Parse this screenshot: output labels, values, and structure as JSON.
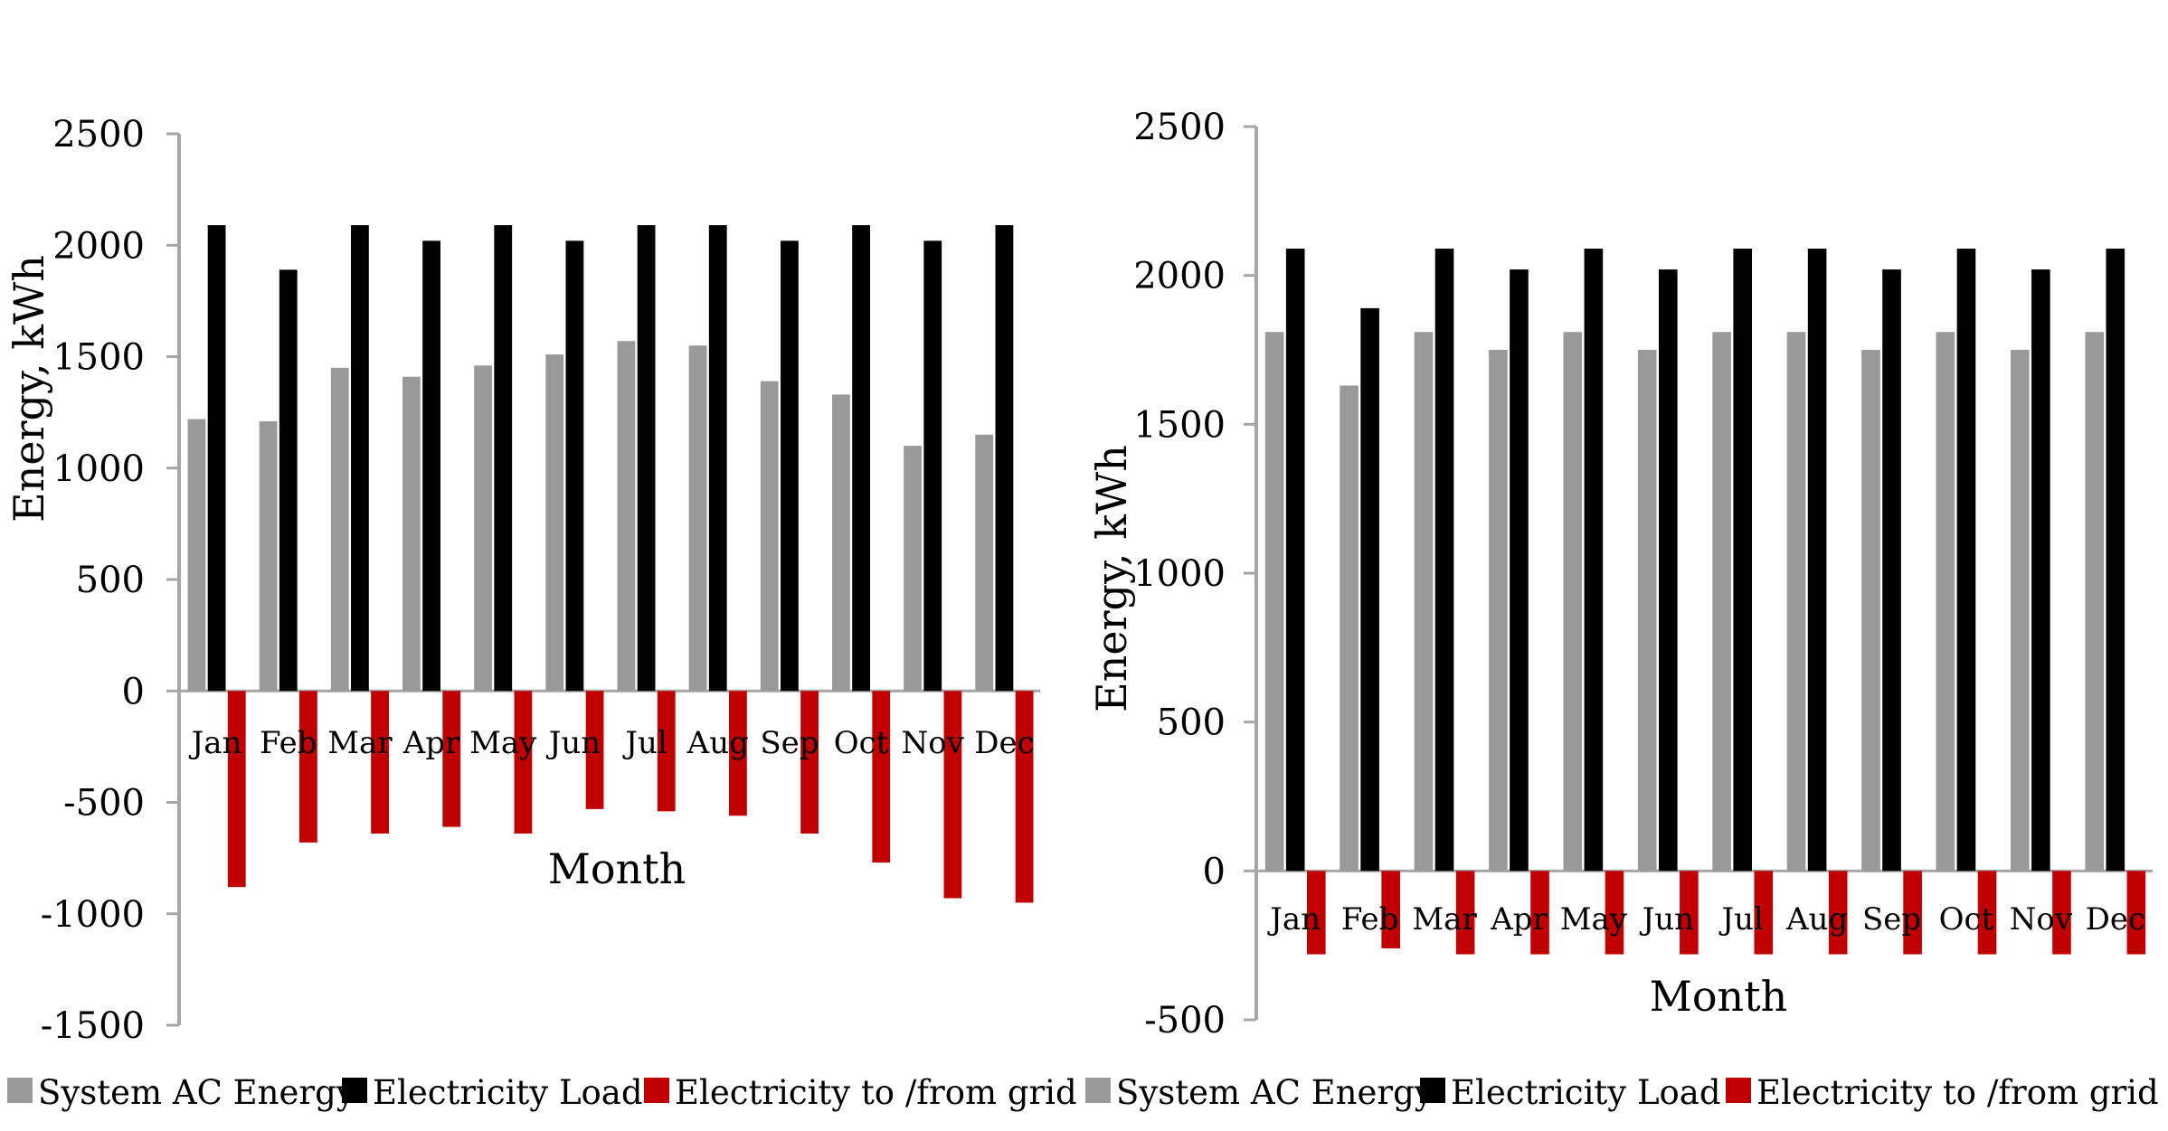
{
  "chart_data": [
    {
      "type": "bar",
      "categories": [
        "Jan",
        "Feb",
        "Mar",
        "Apr",
        "May",
        "Jun",
        "Jul",
        "Aug",
        "Sep",
        "Oct",
        "Nov",
        "Dec"
      ],
      "series": [
        {
          "name": "System AC Energy",
          "values": [
            1220,
            1210,
            1450,
            1410,
            1460,
            1510,
            1570,
            1550,
            1390,
            1330,
            1100,
            1150
          ]
        },
        {
          "name": "Electricity Load",
          "values": [
            2090,
            1890,
            2090,
            2020,
            2090,
            2020,
            2090,
            2090,
            2020,
            2090,
            2020,
            2090
          ]
        },
        {
          "name": "Electricity to /from grid",
          "values": [
            -880,
            -680,
            -640,
            -610,
            -640,
            -530,
            -540,
            -560,
            -640,
            -770,
            -930,
            -950
          ]
        }
      ],
      "xlabel": "Month",
      "ylabel": "Energy, kWh",
      "ylim": [
        -1500,
        2500
      ],
      "yticks": [
        "2500",
        "2000",
        "1500",
        "1000",
        "500",
        "0",
        "-500",
        "-1000",
        "-1500"
      ],
      "colors": {
        "System AC Energy": "#999999",
        "Electricity Load": "#000000",
        "Electricity to /from grid": "#c00000"
      },
      "grid": false,
      "legend": "bottom"
    },
    {
      "type": "bar",
      "categories": [
        "Jan",
        "Feb",
        "Mar",
        "Apr",
        "May",
        "Jun",
        "Jul",
        "Aug",
        "Sep",
        "Oct",
        "Nov",
        "Dec"
      ],
      "series": [
        {
          "name": "System AC Energy",
          "values": [
            1810,
            1630,
            1810,
            1750,
            1810,
            1750,
            1810,
            1810,
            1750,
            1810,
            1750,
            1810
          ]
        },
        {
          "name": "Electricity Load",
          "values": [
            2090,
            1890,
            2090,
            2020,
            2090,
            2020,
            2090,
            2090,
            2020,
            2090,
            2020,
            2090
          ]
        },
        {
          "name": "Electricity to /from grid",
          "values": [
            -280,
            -260,
            -280,
            -280,
            -280,
            -280,
            -280,
            -280,
            -280,
            -280,
            -280,
            -280
          ]
        }
      ],
      "xlabel": "Month",
      "ylabel": "Energy, kWh",
      "ylim": [
        -500,
        2500
      ],
      "yticks": [
        "2500",
        "2000",
        "1500",
        "1000",
        "500",
        "0",
        "-500"
      ],
      "colors": {
        "System AC Energy": "#999999",
        "Electricity Load": "#000000",
        "Electricity to /from grid": "#c00000"
      },
      "grid": false,
      "legend": "bottom"
    }
  ]
}
